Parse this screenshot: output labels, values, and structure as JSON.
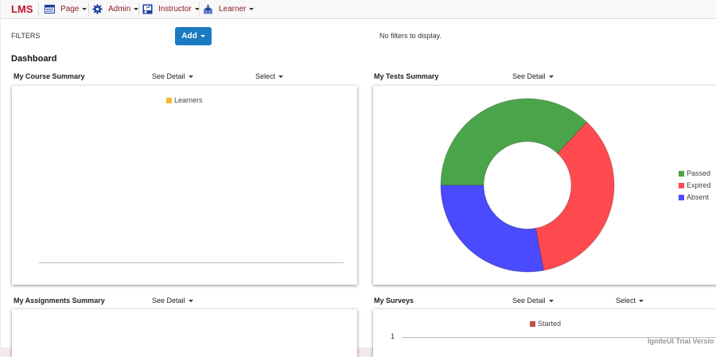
{
  "app": {
    "brand": "LMS"
  },
  "nav": [
    {
      "label": "Page",
      "icon": "page-icon"
    },
    {
      "label": "Admin",
      "icon": "gear-icon"
    },
    {
      "label": "Instructor",
      "icon": "instructor-icon"
    },
    {
      "label": "Learner",
      "icon": "learner-icon"
    }
  ],
  "filters": {
    "label": "FILTERS",
    "add_label": "Add",
    "empty_text": "No filters to display."
  },
  "dashboard": {
    "title": "Dashboard",
    "course_summary": {
      "title": "My Course Summary",
      "see_detail": "See Detail",
      "select": "Select",
      "legend": "Learners",
      "legend_color": "#f5b731"
    },
    "tests_summary": {
      "title": "My Tests Summary",
      "see_detail": "See Detail"
    },
    "assignments_summary": {
      "title": "My Assignments Summary",
      "see_detail": "See Detail"
    },
    "surveys": {
      "title": "My Surveys",
      "see_detail": "See Detail",
      "select": "Select",
      "legend": "Started",
      "legend_color": "#c0504d",
      "tick": "1"
    }
  },
  "chart_data": {
    "type": "pie",
    "variant": "donut",
    "labels": [
      "Passed",
      "Expired",
      "Absent"
    ],
    "values": [
      37,
      35,
      28
    ],
    "colors": [
      "#4aa54a",
      "#ff4a4f",
      "#4a4aff"
    ],
    "legend_position": "right"
  },
  "watermark": "IgniteUI Trial Versio"
}
